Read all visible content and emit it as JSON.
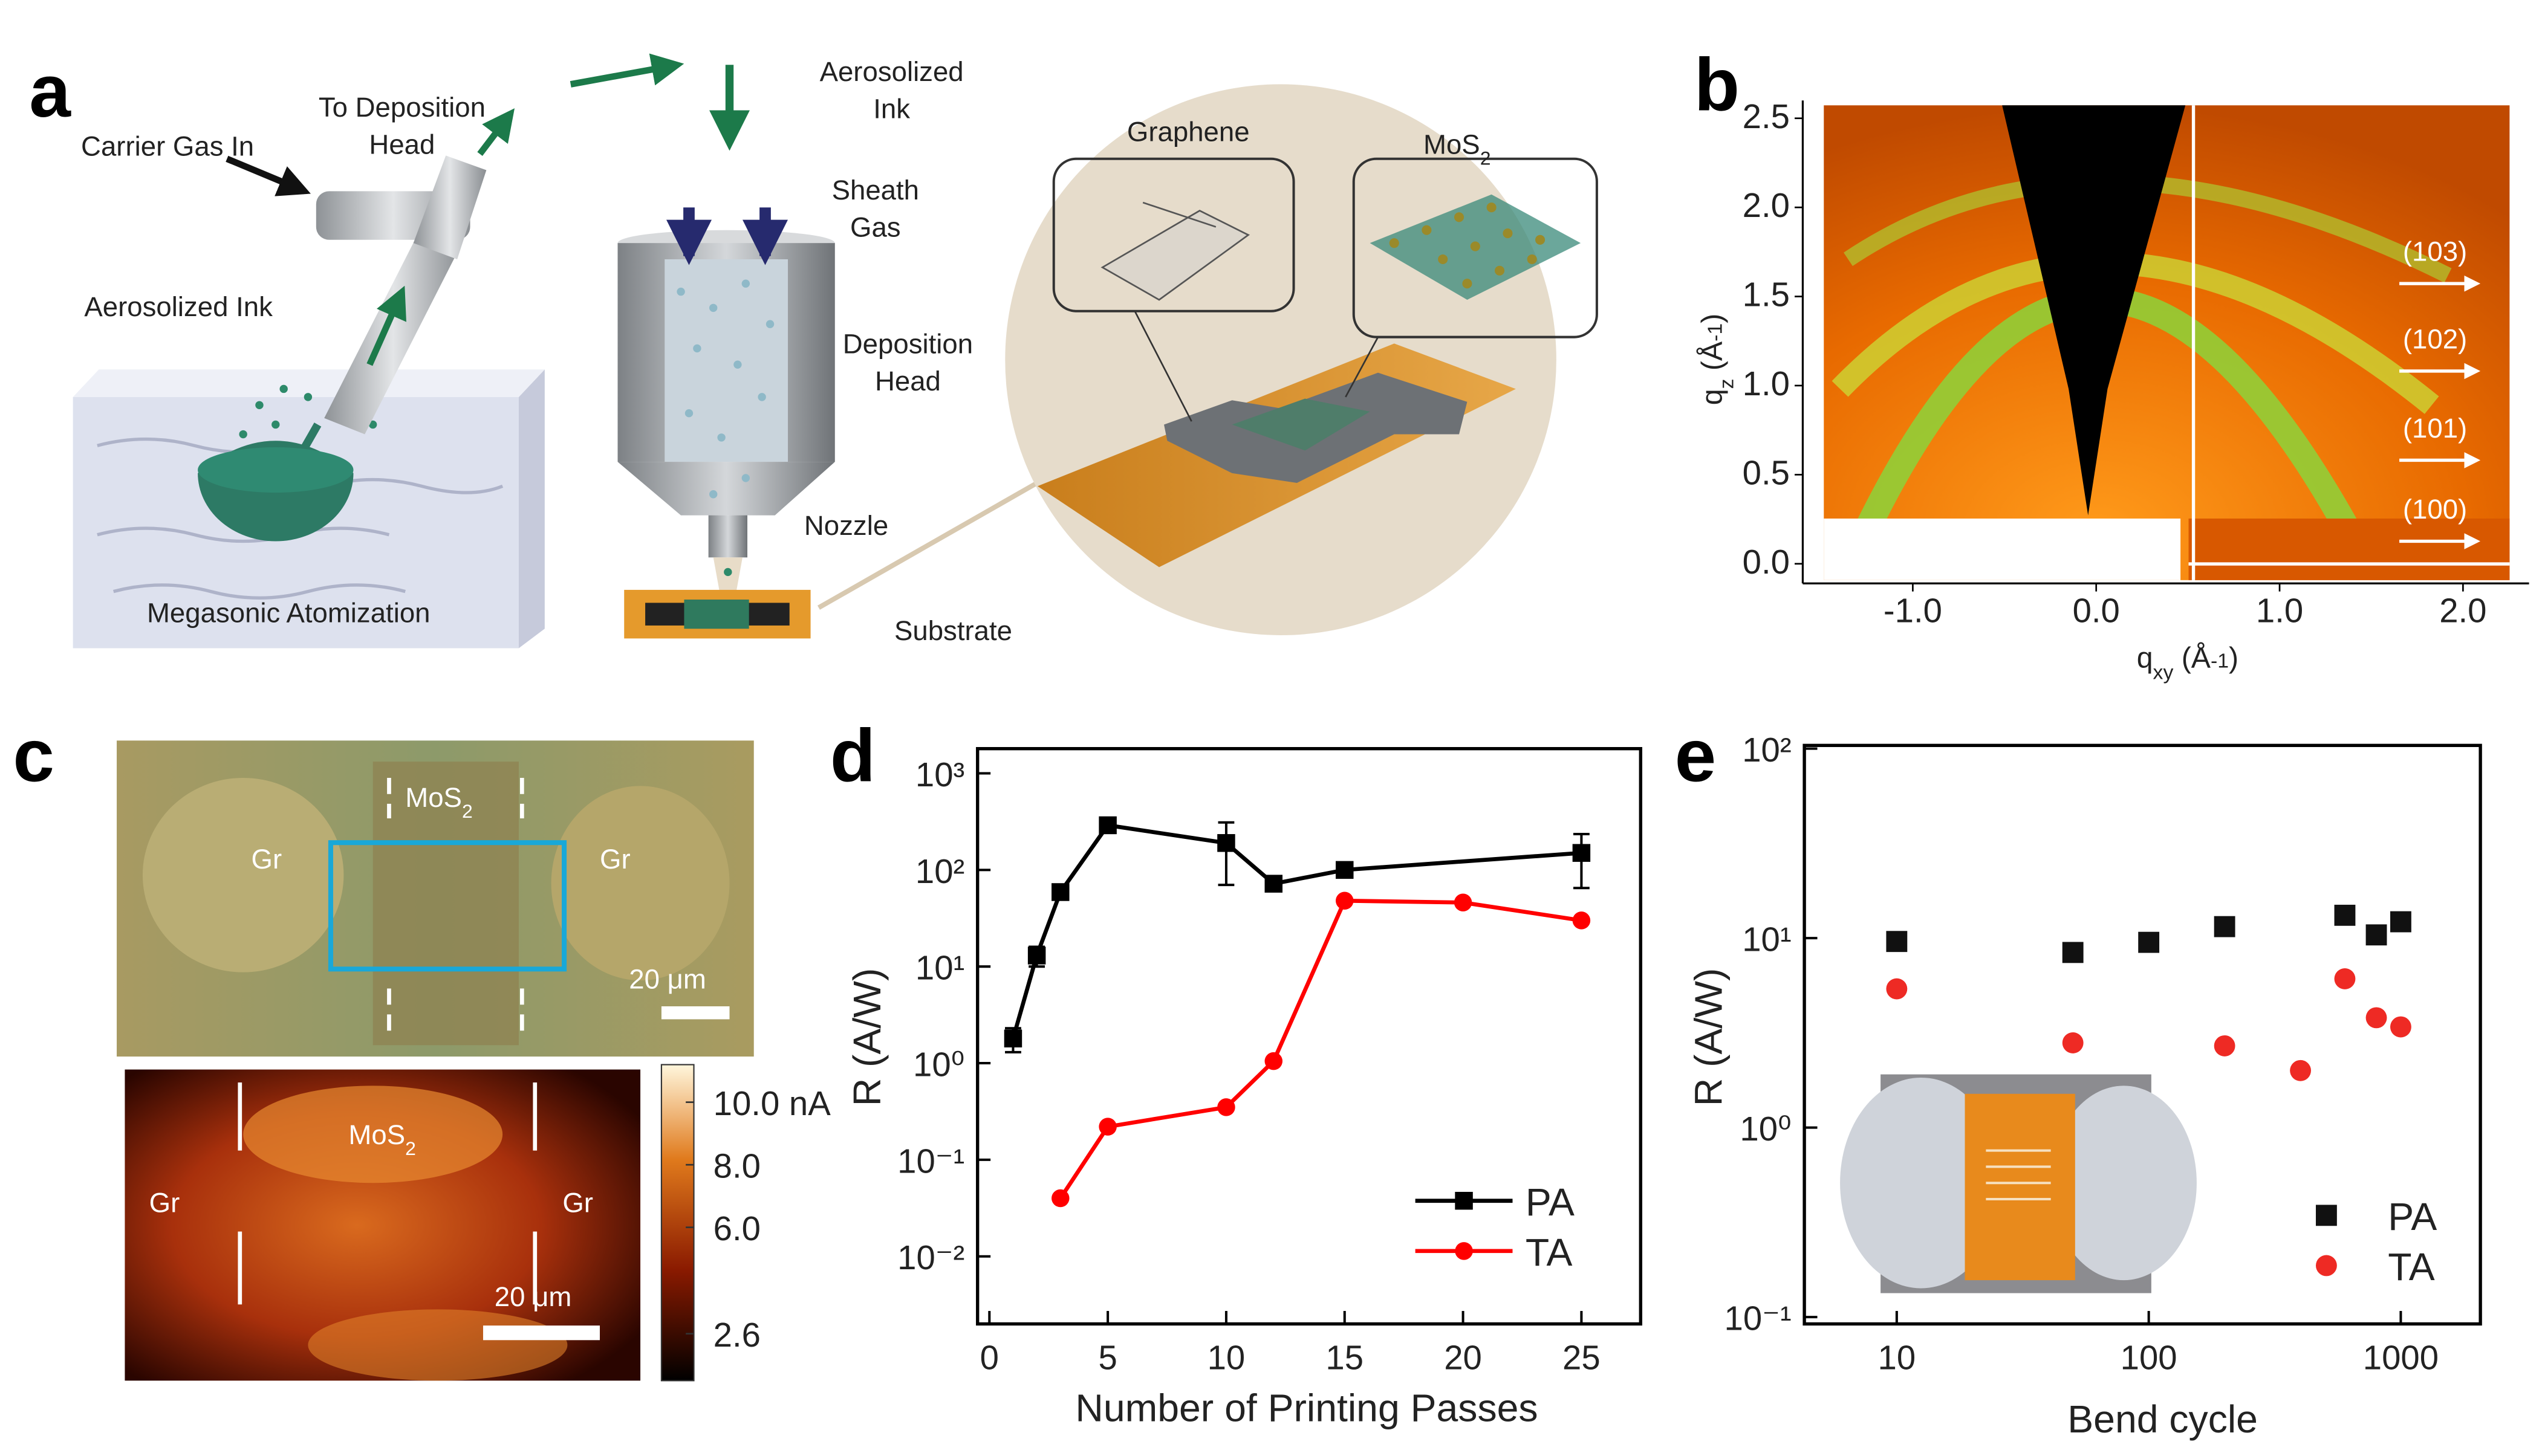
{
  "figure": {
    "panel_labels": [
      "a",
      "b",
      "c",
      "d",
      "e"
    ],
    "a": {
      "carrier_gas": "Carrier Gas In",
      "to_head": [
        "To Deposition",
        "Head"
      ],
      "ink_left": "Aerosolized Ink",
      "atomization": "Megasonic Atomization",
      "ink_right": [
        "Aerosolized",
        "Ink"
      ],
      "sheath": [
        "Sheath",
        "Gas"
      ],
      "head": [
        "Deposition",
        "Head"
      ],
      "nozzle": "Nozzle",
      "substrate": "Substrate",
      "graphene": "Graphene",
      "mos2": [
        "MoS",
        "2"
      ]
    },
    "c": {
      "gr": "Gr",
      "mos2": [
        "MoS",
        "2"
      ],
      "scale_bar": "20 μm"
    }
  },
  "chart_data": [
    {
      "type": "image",
      "xlim": [
        -1.6,
        2.36
      ],
      "ylim": [
        -0.11,
        2.6
      ],
      "xticks": [
        {
          "value": -1,
          "label": "-1.0"
        },
        {
          "value": 0,
          "label": "0.0"
        },
        {
          "value": 1,
          "label": "1.0"
        },
        {
          "value": 2,
          "label": "2.0"
        }
      ],
      "yticks": [
        {
          "value": 0,
          "label": "0.0"
        },
        0.5,
        {
          "value": 1,
          "label": "1.0"
        },
        1.5,
        {
          "value": 2,
          "label": "2.0"
        },
        2.5
      ],
      "xlabel": [
        "q",
        "xy",
        " (Å",
        "-1",
        ")"
      ],
      "ylabel": [
        "q",
        "z",
        " (Å",
        "-1",
        ")"
      ],
      "annotations": [
        "(103)",
        "(102)",
        "(101)",
        "(100)"
      ]
    },
    {
      "type": "heatmap",
      "clim": [
        1.1,
        11.2
      ],
      "cticks": [
        {
          "value": 10,
          "label": "10.0 nA"
        },
        {
          "value": 8,
          "label": "8.0"
        },
        {
          "value": 6,
          "label": "6.0"
        },
        2.6
      ]
    },
    {
      "type": "line",
      "xlabel": "Number of Printing Passes",
      "ylabel": "R (A/W)",
      "log_y": true,
      "xlim": [
        -0.5,
        27.5
      ],
      "xticks": [
        0,
        5,
        10,
        15,
        20,
        25
      ],
      "ylim": [
        0.002,
        1800
      ],
      "yticks": [
        {
          "value": 0.01,
          "label": "10⁻²"
        },
        {
          "value": 0.1,
          "label": "10⁻¹"
        },
        {
          "value": 1,
          "label": "10⁰"
        },
        {
          "value": 10,
          "label": "10¹"
        },
        {
          "value": 100,
          "label": "10²"
        },
        {
          "value": 1000,
          "label": "10³"
        }
      ],
      "legend": "lower right",
      "series": [
        {
          "name": "PA",
          "color": "#000000",
          "marker": "square",
          "x": [
            1,
            2,
            3,
            5,
            10,
            12,
            15,
            25
          ],
          "values": [
            1.8,
            13,
            59,
            290,
            190,
            72,
            100,
            150
          ],
          "errors": [
            0.5,
            3,
            null,
            null,
            120,
            null,
            15,
            85
          ]
        },
        {
          "name": "TA",
          "color": "#ff0000",
          "marker": "circle",
          "x": [
            3,
            5,
            10,
            12,
            15,
            20,
            25
          ],
          "values": [
            0.04,
            0.22,
            0.35,
            1.05,
            48,
            46,
            30
          ]
        }
      ]
    },
    {
      "type": "scatter",
      "xlabel": "Bend cycle",
      "ylabel": "R (A/W)",
      "log_x": true,
      "log_y": true,
      "xlim": [
        4.3,
        2070
      ],
      "xticks": [
        10,
        100,
        1000
      ],
      "ylim": [
        0.092,
        104
      ],
      "yticks": [
        {
          "value": 0.1,
          "label": "10⁻¹"
        },
        {
          "value": 1,
          "label": "10⁰"
        },
        {
          "value": 10,
          "label": "10¹"
        },
        {
          "value": 100,
          "label": "10²"
        }
      ],
      "legend": "lower right",
      "series": [
        {
          "name": "PA",
          "color": "#111111",
          "marker": "square",
          "x": [
            10,
            50,
            100,
            200,
            600,
            800,
            1000
          ],
          "values": [
            9.6,
            8.4,
            9.5,
            11.5,
            13.2,
            10.4,
            12.2
          ]
        },
        {
          "name": "TA",
          "color": "#ee2a24",
          "marker": "circle",
          "x": [
            10,
            50,
            200,
            400,
            600,
            800,
            1000
          ],
          "values": [
            5.4,
            2.8,
            2.7,
            2.0,
            6.1,
            3.8,
            3.4
          ]
        }
      ]
    }
  ]
}
